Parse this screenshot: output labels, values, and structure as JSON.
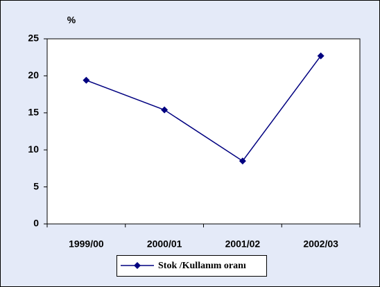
{
  "chart_data": {
    "type": "line",
    "y_label": "%",
    "categories": [
      "1999/00",
      "2000/01",
      "2001/02",
      "2002/03"
    ],
    "series": [
      {
        "name": "Stok /Kullanım oranı",
        "color": "#000080",
        "values": [
          19.4,
          15.4,
          8.5,
          22.7
        ]
      }
    ],
    "ylim": [
      0,
      25
    ],
    "yticks": [
      0,
      5,
      10,
      15,
      20,
      25
    ],
    "grid": false,
    "legend": "bottom"
  }
}
